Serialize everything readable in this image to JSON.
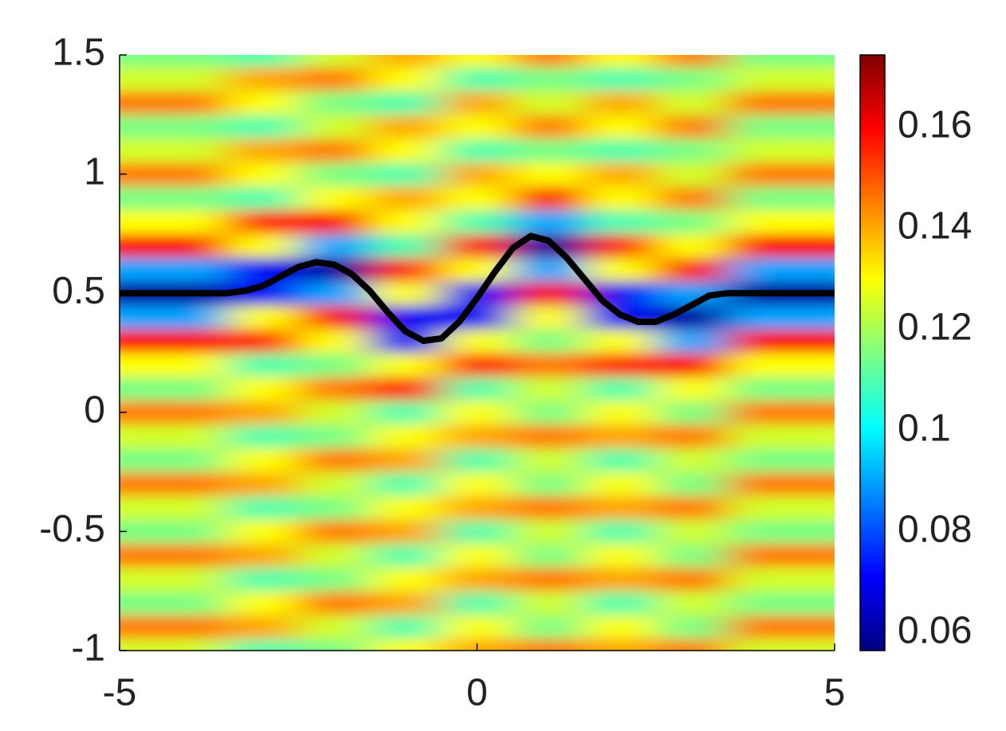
{
  "chart_data": {
    "type": "heatmap",
    "x": [
      -5,
      -4,
      -3,
      -2,
      -1,
      0,
      1,
      2,
      3,
      4,
      5
    ],
    "y": [
      -1.0,
      -0.9,
      -0.8,
      -0.7,
      -0.6,
      -0.5,
      -0.4,
      -0.3,
      -0.2,
      -0.1,
      0.0,
      0.1,
      0.2,
      0.3,
      0.4,
      0.5,
      0.6,
      0.7,
      0.8,
      0.9,
      1.0,
      1.1,
      1.2,
      1.3,
      1.4,
      1.5
    ],
    "z": [
      [
        0.125,
        0.145,
        0.115,
        0.125,
        0.145,
        0.115,
        0.125,
        0.145,
        0.115,
        0.125,
        0.145,
        0.115,
        0.13,
        0.16,
        0.09,
        0.06,
        0.09,
        0.16,
        0.13,
        0.115,
        0.145,
        0.125,
        0.115,
        0.145,
        0.125,
        0.115
      ],
      [
        0.125,
        0.145,
        0.115,
        0.125,
        0.145,
        0.115,
        0.125,
        0.145,
        0.115,
        0.125,
        0.145,
        0.115,
        0.13,
        0.16,
        0.09,
        0.06,
        0.09,
        0.16,
        0.13,
        0.115,
        0.145,
        0.125,
        0.115,
        0.145,
        0.125,
        0.115
      ],
      [
        0.11,
        0.14,
        0.13,
        0.11,
        0.14,
        0.13,
        0.11,
        0.14,
        0.13,
        0.11,
        0.14,
        0.13,
        0.11,
        0.155,
        0.13,
        0.07,
        0.07,
        0.13,
        0.155,
        0.11,
        0.13,
        0.14,
        0.11,
        0.13,
        0.14,
        0.11
      ],
      [
        0.115,
        0.125,
        0.145,
        0.115,
        0.125,
        0.145,
        0.115,
        0.125,
        0.145,
        0.115,
        0.125,
        0.145,
        0.115,
        0.13,
        0.16,
        0.09,
        0.06,
        0.09,
        0.16,
        0.13,
        0.115,
        0.145,
        0.125,
        0.115,
        0.145,
        0.125
      ],
      [
        0.13,
        0.11,
        0.14,
        0.13,
        0.11,
        0.14,
        0.13,
        0.11,
        0.14,
        0.13,
        0.11,
        0.155,
        0.13,
        0.07,
        0.07,
        0.13,
        0.155,
        0.11,
        0.13,
        0.14,
        0.11,
        0.13,
        0.14,
        0.11,
        0.13,
        0.14
      ],
      [
        0.14,
        0.13,
        0.11,
        0.14,
        0.13,
        0.11,
        0.14,
        0.13,
        0.11,
        0.14,
        0.13,
        0.11,
        0.155,
        0.13,
        0.07,
        0.07,
        0.13,
        0.155,
        0.11,
        0.13,
        0.14,
        0.11,
        0.13,
        0.14,
        0.11,
        0.13
      ],
      [
        0.145,
        0.115,
        0.125,
        0.145,
        0.115,
        0.125,
        0.145,
        0.115,
        0.125,
        0.145,
        0.115,
        0.125,
        0.145,
        0.115,
        0.13,
        0.16,
        0.09,
        0.06,
        0.09,
        0.16,
        0.13,
        0.115,
        0.145,
        0.125,
        0.115,
        0.145
      ],
      [
        0.14,
        0.13,
        0.11,
        0.14,
        0.13,
        0.11,
        0.14,
        0.13,
        0.11,
        0.14,
        0.13,
        0.11,
        0.155,
        0.13,
        0.07,
        0.07,
        0.13,
        0.155,
        0.11,
        0.13,
        0.14,
        0.11,
        0.13,
        0.14,
        0.11,
        0.13
      ],
      [
        0.145,
        0.115,
        0.125,
        0.145,
        0.115,
        0.125,
        0.145,
        0.115,
        0.125,
        0.145,
        0.115,
        0.13,
        0.16,
        0.09,
        0.06,
        0.09,
        0.16,
        0.13,
        0.115,
        0.145,
        0.125,
        0.115,
        0.145,
        0.125,
        0.115,
        0.145
      ],
      [
        0.125,
        0.145,
        0.115,
        0.125,
        0.145,
        0.115,
        0.125,
        0.145,
        0.115,
        0.125,
        0.145,
        0.115,
        0.13,
        0.16,
        0.09,
        0.06,
        0.09,
        0.16,
        0.13,
        0.115,
        0.145,
        0.125,
        0.115,
        0.145,
        0.125,
        0.115
      ],
      [
        0.125,
        0.145,
        0.115,
        0.125,
        0.145,
        0.115,
        0.125,
        0.145,
        0.115,
        0.125,
        0.145,
        0.115,
        0.13,
        0.16,
        0.09,
        0.06,
        0.09,
        0.16,
        0.13,
        0.115,
        0.145,
        0.125,
        0.115,
        0.145,
        0.125,
        0.115
      ]
    ],
    "clim": [
      0.0565,
      0.1743
    ],
    "cticks": [
      0.06,
      0.08,
      0.1,
      0.12,
      0.14,
      0.16
    ],
    "line": {
      "color": "#000000",
      "x": [
        -5,
        -4.75,
        -4.5,
        -4.25,
        -4,
        -3.75,
        -3.5,
        -3.25,
        -3,
        -2.75,
        -2.5,
        -2.25,
        -2,
        -1.75,
        -1.5,
        -1.25,
        -1,
        -0.75,
        -0.5,
        -0.25,
        0,
        0.25,
        0.5,
        0.75,
        1,
        1.25,
        1.5,
        1.75,
        2,
        2.25,
        2.5,
        2.75,
        3,
        3.25,
        3.5,
        3.75,
        4,
        4.25,
        4.5,
        4.75,
        5
      ],
      "y": [
        0.5,
        0.5,
        0.5,
        0.5,
        0.5,
        0.5,
        0.5,
        0.51,
        0.53,
        0.57,
        0.61,
        0.63,
        0.62,
        0.58,
        0.51,
        0.42,
        0.34,
        0.3,
        0.31,
        0.38,
        0.48,
        0.59,
        0.69,
        0.74,
        0.72,
        0.65,
        0.56,
        0.47,
        0.41,
        0.38,
        0.38,
        0.41,
        0.45,
        0.49,
        0.5,
        0.5,
        0.5,
        0.5,
        0.5,
        0.5,
        0.5
      ]
    },
    "xlim": [
      -5,
      5
    ],
    "ylim": [
      -1,
      1.5
    ],
    "xticks": [
      -5,
      0,
      5
    ],
    "yticks": [
      -1,
      -0.5,
      0,
      0.5,
      1,
      1.5
    ]
  }
}
